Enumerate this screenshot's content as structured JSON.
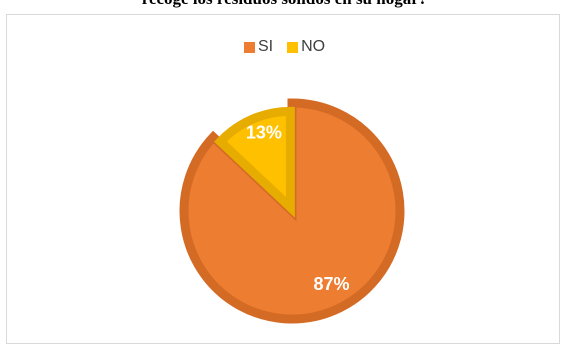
{
  "title": "recoge los residuos sólidos en su hogar?",
  "chart_data": {
    "type": "pie",
    "categories": [
      "SI",
      "NO"
    ],
    "values": [
      87,
      13
    ],
    "labels": [
      "87%",
      "13%"
    ],
    "colors": [
      "#ed7d31",
      "#ffc000"
    ],
    "border_colors": [
      "#d46b25",
      "#e6ac00"
    ],
    "legend_placement": "top",
    "exploded": "NO"
  }
}
